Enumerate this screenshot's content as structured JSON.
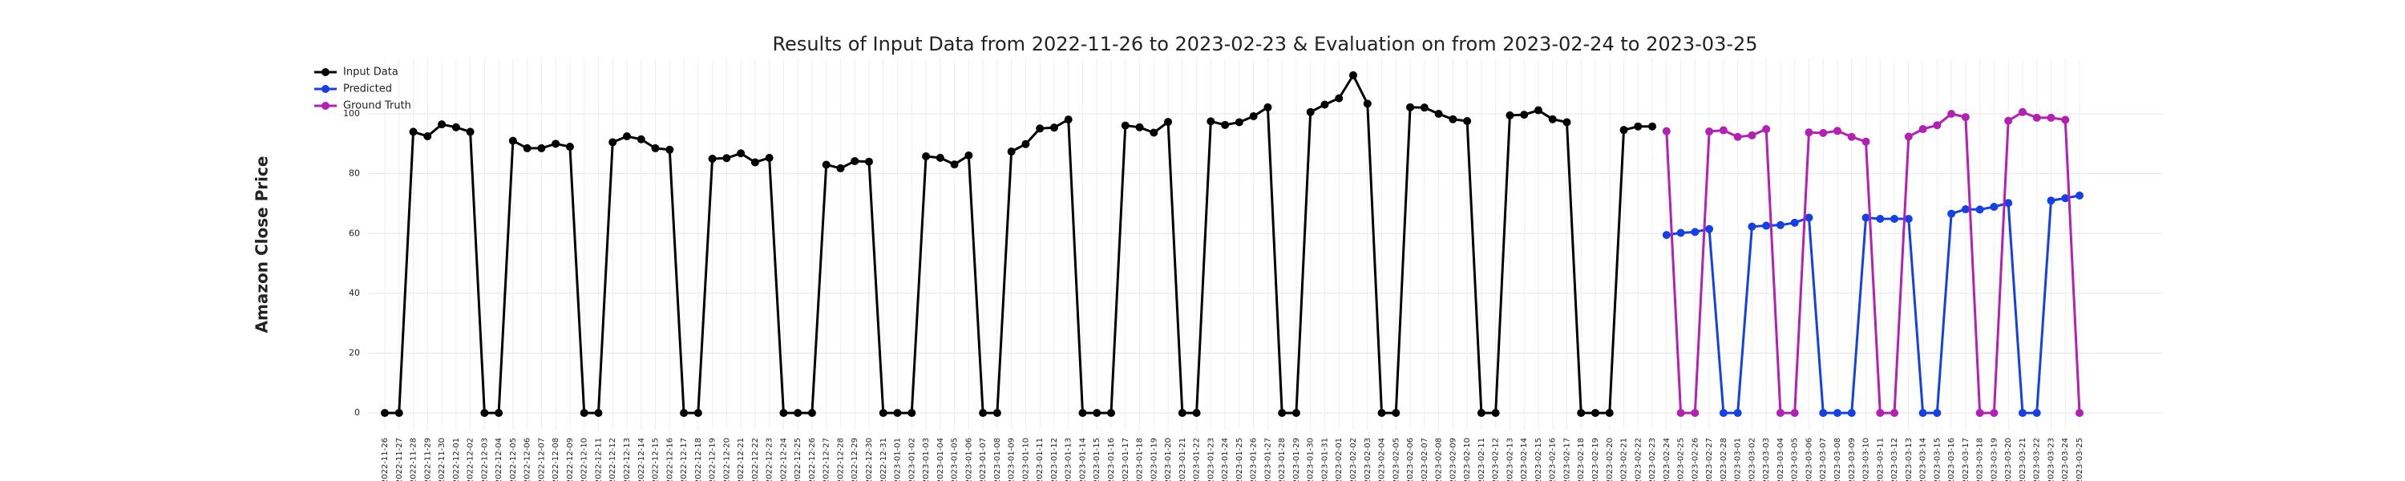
{
  "chart_data": {
    "type": "line",
    "title": "Results of Input Data from 2022-11-26 to 2023-02-23 & Evaluation on from 2023-02-24 to 2023-03-25",
    "ylabel": "Amazon Close Price",
    "categories": [
      "2022-11-26",
      "2022-11-27",
      "2022-11-28",
      "2022-11-29",
      "2022-11-30",
      "2022-12-01",
      "2022-12-02",
      "2022-12-03",
      "2022-12-04",
      "2022-12-05",
      "2022-12-06",
      "2022-12-07",
      "2022-12-08",
      "2022-12-09",
      "2022-12-10",
      "2022-12-11",
      "2022-12-12",
      "2022-12-13",
      "2022-12-14",
      "2022-12-15",
      "2022-12-16",
      "2022-12-17",
      "2022-12-18",
      "2022-12-19",
      "2022-12-20",
      "2022-12-21",
      "2022-12-22",
      "2022-12-23",
      "2022-12-24",
      "2022-12-25",
      "2022-12-26",
      "2022-12-27",
      "2022-12-28",
      "2022-12-29",
      "2022-12-30",
      "2022-12-31",
      "2023-01-01",
      "2023-01-02",
      "2023-01-03",
      "2023-01-04",
      "2023-01-05",
      "2023-01-06",
      "2023-01-07",
      "2023-01-08",
      "2023-01-09",
      "2023-01-10",
      "2023-01-11",
      "2023-01-12",
      "2023-01-13",
      "2023-01-14",
      "2023-01-15",
      "2023-01-16",
      "2023-01-17",
      "2023-01-18",
      "2023-01-19",
      "2023-01-20",
      "2023-01-21",
      "2023-01-22",
      "2023-01-23",
      "2023-01-24",
      "2023-01-25",
      "2023-01-26",
      "2023-01-27",
      "2023-01-28",
      "2023-01-29",
      "2023-01-30",
      "2023-01-31",
      "2023-02-01",
      "2023-02-02",
      "2023-02-03",
      "2023-02-04",
      "2023-02-05",
      "2023-02-06",
      "2023-02-07",
      "2023-02-08",
      "2023-02-09",
      "2023-02-10",
      "2023-02-11",
      "2023-02-12",
      "2023-02-13",
      "2023-02-14",
      "2023-02-15",
      "2023-02-16",
      "2023-02-17",
      "2023-02-18",
      "2023-02-19",
      "2023-02-20",
      "2023-02-21",
      "2023-02-22",
      "2023-02-23",
      "2023-02-24",
      "2023-02-25",
      "2023-02-26",
      "2023-02-27",
      "2023-02-28",
      "2023-03-01",
      "2023-03-02",
      "2023-03-03",
      "2023-03-04",
      "2023-03-05",
      "2023-03-06",
      "2023-03-07",
      "2023-03-08",
      "2023-03-09",
      "2023-03-10",
      "2023-03-11",
      "2023-03-12",
      "2023-03-13",
      "2023-03-14",
      "2023-03-15",
      "2023-03-16",
      "2023-03-17",
      "2023-03-18",
      "2023-03-19",
      "2023-03-20",
      "2023-03-21",
      "2023-03-22",
      "2023-03-23",
      "2023-03-24",
      "2023-03-25"
    ],
    "series": [
      {
        "name": "Input Data",
        "color": "#000000",
        "values": [
          0,
          0,
          94,
          92.5,
          96.5,
          95.5,
          94,
          0,
          0,
          91,
          88.5,
          88.5,
          90,
          89,
          0,
          0,
          90.5,
          92.5,
          91.5,
          88.5,
          88,
          0,
          0,
          85,
          85.2,
          86.8,
          83.8,
          85.3,
          0,
          0,
          0,
          83,
          81.8,
          84.2,
          84,
          0,
          0,
          0,
          85.8,
          85.3,
          83.1,
          86.1,
          0,
          0,
          87.4,
          89.9,
          95.1,
          95.4,
          98.1,
          0,
          0,
          0,
          96.1,
          95.5,
          93.7,
          97.3,
          0,
          0,
          97.5,
          96.3,
          97.2,
          99.2,
          102.2,
          0,
          0,
          100.6,
          103.1,
          105.2,
          112.9,
          103.4,
          0,
          0,
          102.2,
          102.1,
          100,
          98.2,
          97.6,
          0,
          0,
          99.5,
          99.7,
          101.2,
          98.2,
          97.2,
          0,
          0,
          0,
          94.6,
          95.8,
          95.8,
          null,
          null,
          null,
          null,
          null,
          null,
          null,
          null,
          null,
          null,
          null,
          null,
          null,
          null,
          null,
          null,
          null,
          null,
          null,
          null,
          null,
          null,
          null,
          null,
          null,
          null,
          null,
          null,
          null,
          null
        ]
      },
      {
        "name": "Predicted",
        "color": "#1440e8",
        "values": [
          null,
          null,
          null,
          null,
          null,
          null,
          null,
          null,
          null,
          null,
          null,
          null,
          null,
          null,
          null,
          null,
          null,
          null,
          null,
          null,
          null,
          null,
          null,
          null,
          null,
          null,
          null,
          null,
          null,
          null,
          null,
          null,
          null,
          null,
          null,
          null,
          null,
          null,
          null,
          null,
          null,
          null,
          null,
          null,
          null,
          null,
          null,
          null,
          null,
          null,
          null,
          null,
          null,
          null,
          null,
          null,
          null,
          null,
          null,
          null,
          null,
          null,
          null,
          null,
          null,
          null,
          null,
          null,
          null,
          null,
          null,
          null,
          null,
          null,
          null,
          null,
          null,
          null,
          null,
          null,
          null,
          null,
          null,
          null,
          null,
          null,
          null,
          null,
          null,
          null,
          59.5,
          60.2,
          60.5,
          61.5,
          0,
          0,
          62.3,
          62.6,
          62.8,
          63.6,
          65.3,
          0,
          0,
          0,
          65.3,
          64.9,
          64.9,
          64.9,
          0,
          0,
          66.6,
          68.1,
          68,
          68.9,
          70.2,
          0,
          0,
          71,
          71.8,
          72.7
        ]
      },
      {
        "name": "Ground Truth",
        "color": "#b41fb4",
        "values": [
          null,
          null,
          null,
          null,
          null,
          null,
          null,
          null,
          null,
          null,
          null,
          null,
          null,
          null,
          null,
          null,
          null,
          null,
          null,
          null,
          null,
          null,
          null,
          null,
          null,
          null,
          null,
          null,
          null,
          null,
          null,
          null,
          null,
          null,
          null,
          null,
          null,
          null,
          null,
          null,
          null,
          null,
          null,
          null,
          null,
          null,
          null,
          null,
          null,
          null,
          null,
          null,
          null,
          null,
          null,
          null,
          null,
          null,
          null,
          null,
          null,
          null,
          null,
          null,
          null,
          null,
          null,
          null,
          null,
          null,
          null,
          null,
          null,
          null,
          null,
          null,
          null,
          null,
          null,
          null,
          null,
          null,
          null,
          null,
          null,
          null,
          null,
          null,
          null,
          null,
          94.2,
          0,
          0,
          94.1,
          94.5,
          92.3,
          92.8,
          94.9,
          0,
          0,
          93.8,
          93.6,
          94.3,
          92.3,
          90.7,
          0,
          0,
          92.4,
          94.9,
          96.2,
          100,
          98.9,
          0,
          0,
          97.7,
          100.6,
          98.7,
          98.7,
          98,
          0
        ]
      }
    ],
    "ylim": [
      -5.6,
      118.5
    ],
    "yticks": [
      0,
      20,
      40,
      60,
      80,
      100
    ],
    "grid": true,
    "legend": "upper left"
  }
}
